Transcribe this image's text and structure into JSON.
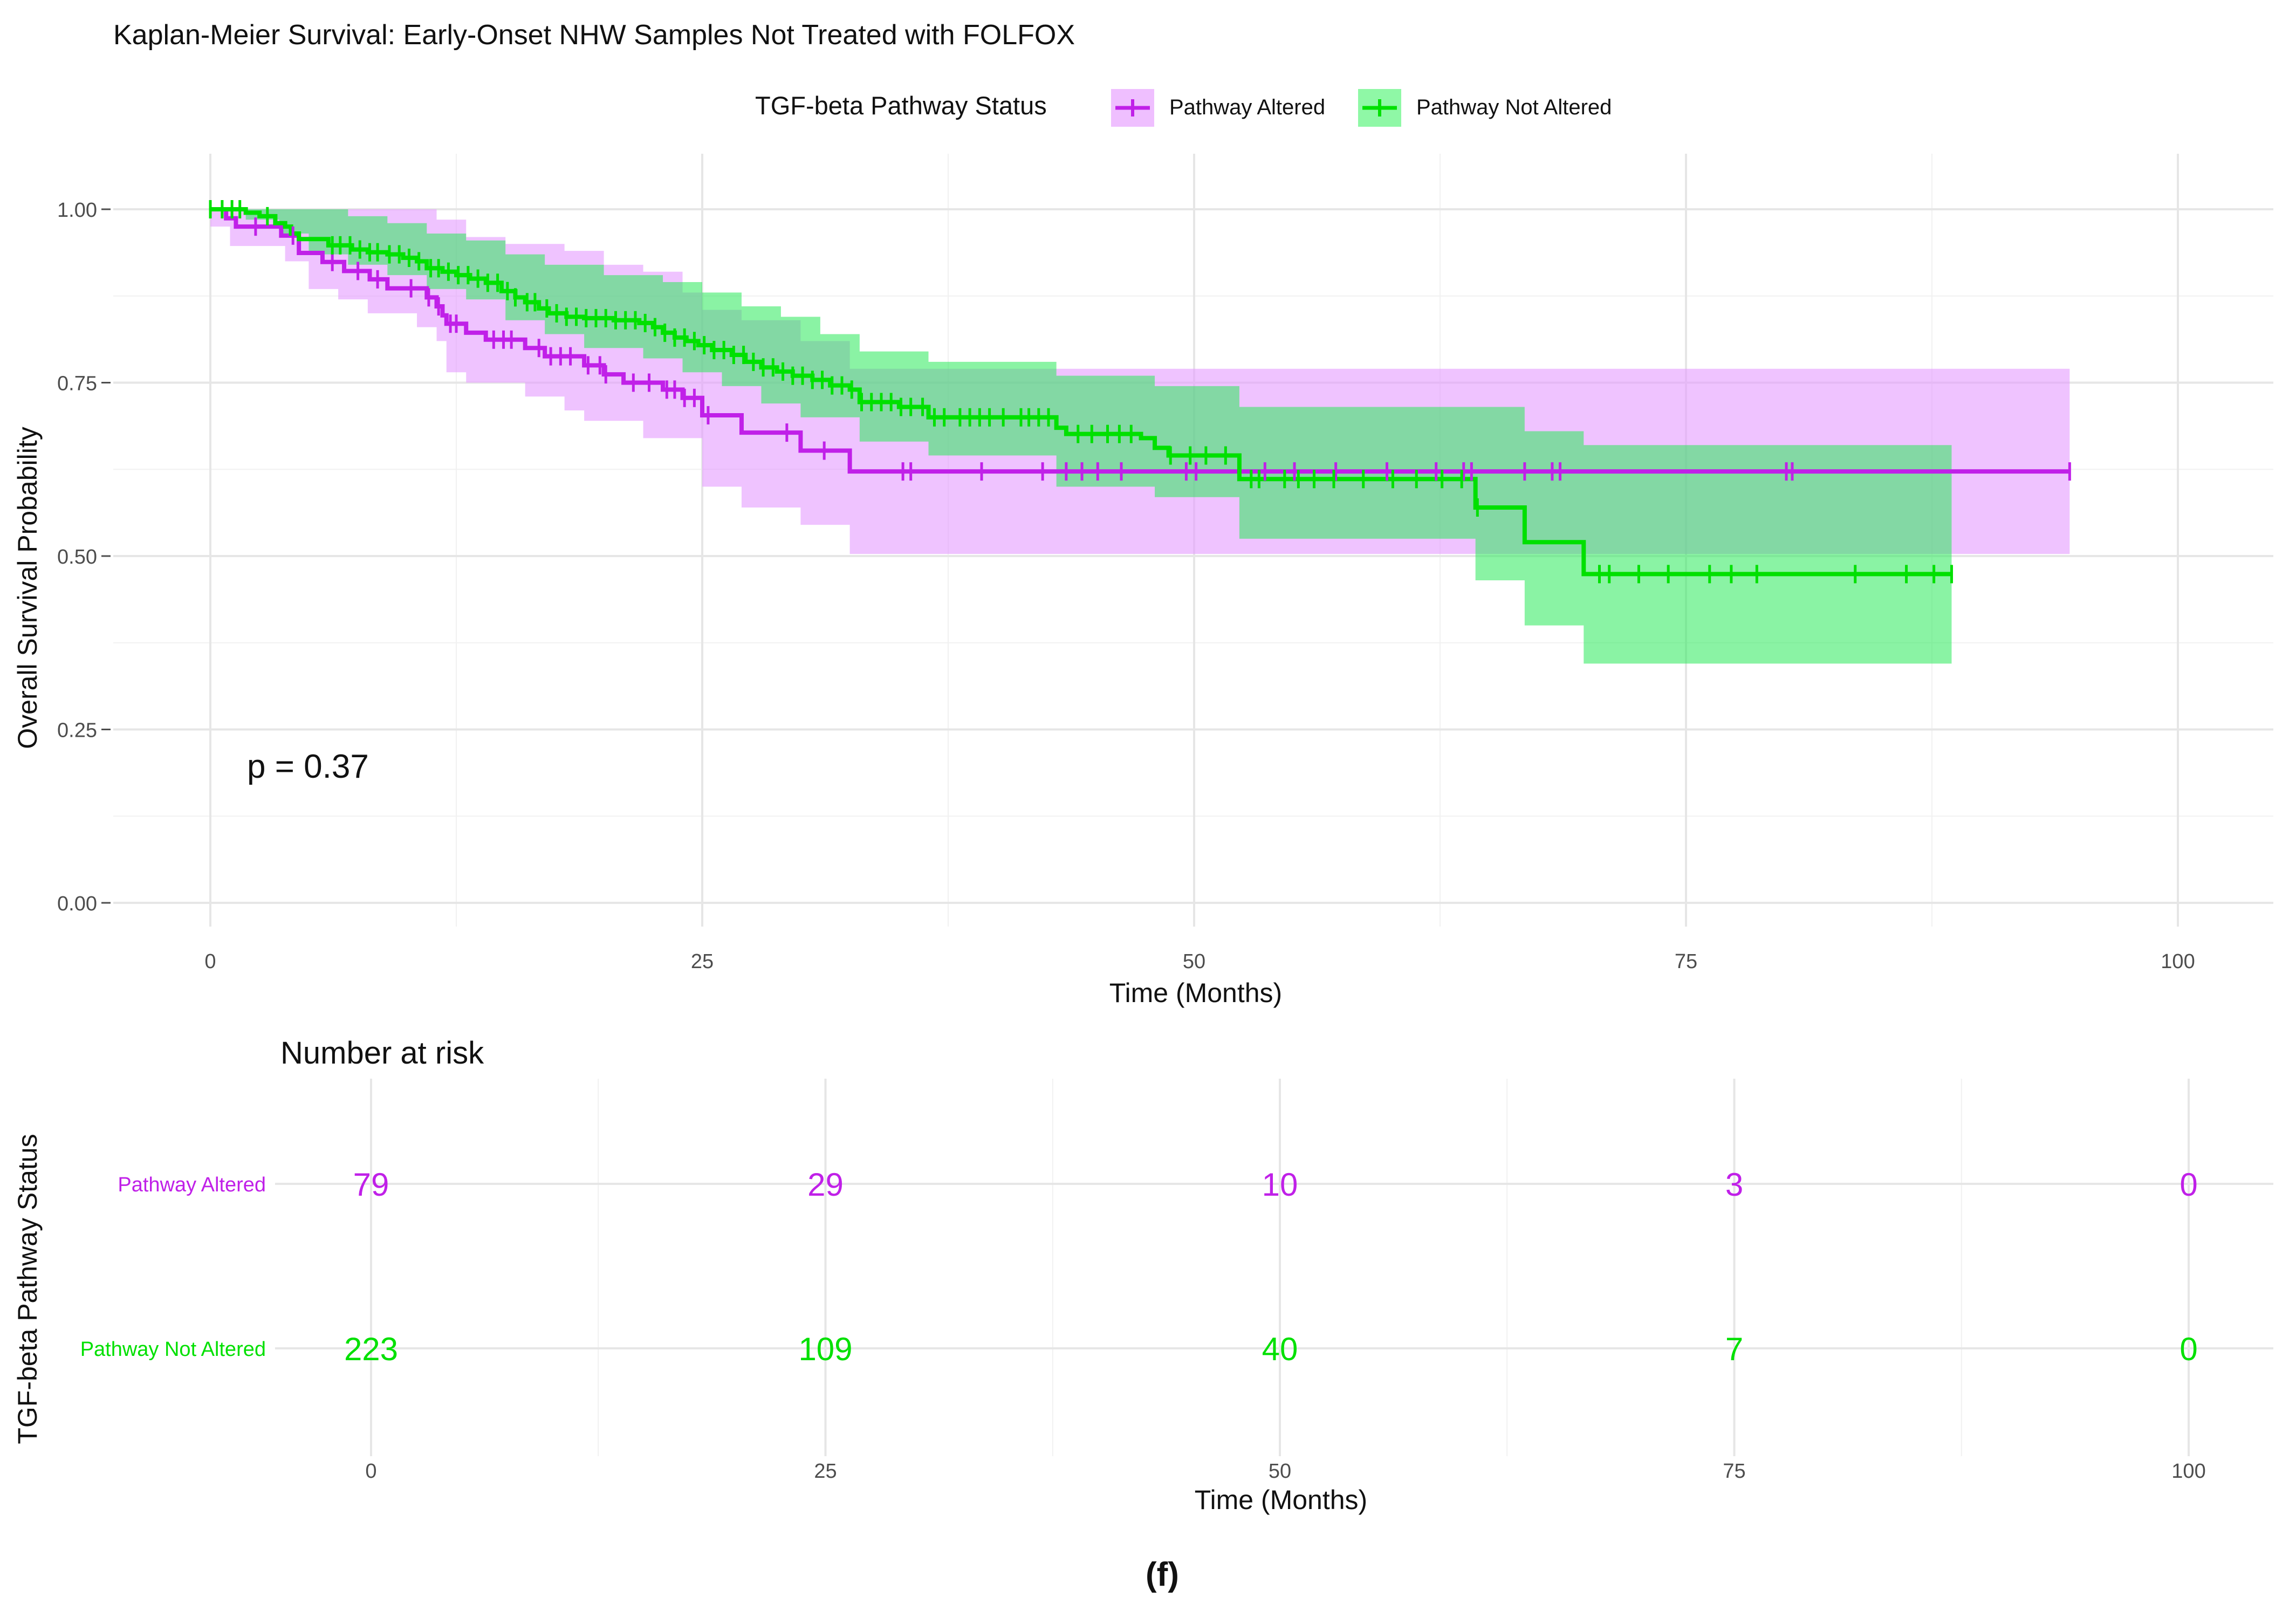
{
  "chart_data": [
    {
      "type": "line",
      "subtype": "kaplan-meier",
      "title": "Kaplan-Meier Survival: Early-Onset NHW Samples Not Treated with FOLFOX",
      "xlabel": "Time (Months)",
      "ylabel": "Overall Survival Probability",
      "xlim": [
        -5,
        105
      ],
      "ylim": [
        -0.02,
        1.06
      ],
      "x_ticks": [
        0,
        25,
        50,
        75,
        100
      ],
      "x_tick_labels": [
        "0",
        "25",
        "50",
        "75",
        "100"
      ],
      "y_ticks": [
        0,
        0.25,
        0.5,
        0.75,
        1.0
      ],
      "y_tick_labels": [
        "0.00",
        "0.25",
        "0.50",
        "0.75",
        "1.00"
      ],
      "grid": true,
      "legend": {
        "title": "TGF-beta Pathway Status",
        "position": "top",
        "entries": [
          "Pathway Altered",
          "Pathway Not Altered"
        ]
      },
      "annotation": "p = 0.37",
      "series": [
        {
          "name": "Pathway Altered",
          "color": "#c020e8",
          "band_color": "#ef bfff",
          "steps": [
            [
              0,
              1.0
            ],
            [
              0.8,
              0.987
            ],
            [
              1.3,
              0.975
            ],
            [
              3.6,
              0.962
            ],
            [
              4.5,
              0.937
            ],
            [
              5.7,
              0.924
            ],
            [
              6.8,
              0.911
            ],
            [
              8.1,
              0.899
            ],
            [
              9,
              0.886
            ],
            [
              10.5,
              0.886
            ],
            [
              11,
              0.873
            ],
            [
              11.5,
              0.86
            ],
            [
              11.8,
              0.847
            ],
            [
              12,
              0.835
            ],
            [
              13,
              0.822
            ],
            [
              14,
              0.812
            ],
            [
              15,
              0.812
            ],
            [
              16,
              0.8
            ],
            [
              17,
              0.788
            ],
            [
              18,
              0.788
            ],
            [
              19,
              0.775
            ],
            [
              20,
              0.762
            ],
            [
              21,
              0.75
            ],
            [
              22,
              0.75
            ],
            [
              23,
              0.74
            ],
            [
              24,
              0.728
            ],
            [
              25,
              0.703
            ],
            [
              27,
              0.678
            ],
            [
              29.5,
              0.678
            ],
            [
              30,
              0.652
            ],
            [
              32.5,
              0.622
            ],
            [
              94.5,
              0.622
            ]
          ],
          "lower_steps": [
            [
              0,
              0.975
            ],
            [
              1,
              0.947
            ],
            [
              3.8,
              0.925
            ],
            [
              5,
              0.885
            ],
            [
              6.5,
              0.87
            ],
            [
              8,
              0.85
            ],
            [
              10.5,
              0.83
            ],
            [
              11.5,
              0.81
            ],
            [
              12,
              0.765
            ],
            [
              13,
              0.75
            ],
            [
              16,
              0.73
            ],
            [
              18,
              0.71
            ],
            [
              19,
              0.695
            ],
            [
              22,
              0.67
            ],
            [
              25,
              0.6
            ],
            [
              27,
              0.57
            ],
            [
              30,
              0.545
            ],
            [
              32.5,
              0.503
            ],
            [
              94.5,
              0.503
            ]
          ],
          "upper_steps": [
            [
              0,
              1.0
            ],
            [
              10,
              1.0
            ],
            [
              11.5,
              0.985
            ],
            [
              13,
              0.96
            ],
            [
              15,
              0.95
            ],
            [
              18,
              0.94
            ],
            [
              20,
              0.92
            ],
            [
              22,
              0.91
            ],
            [
              24,
              0.88
            ],
            [
              25,
              0.855
            ],
            [
              27,
              0.84
            ],
            [
              30,
              0.81
            ],
            [
              32.5,
              0.77
            ],
            [
              94.5,
              0.77
            ]
          ],
          "censor_times": [
            2.3,
            4.2,
            6.2,
            7.5,
            8.5,
            10.2,
            11.1,
            11.6,
            12.2,
            12.5,
            14.4,
            14.9,
            15.3,
            16.7,
            17.3,
            17.8,
            18.3,
            19.2,
            19.8,
            20.1,
            21.5,
            22.3,
            23.2,
            23.6,
            24.1,
            24.6,
            25.3,
            29.3,
            31.2,
            35.2,
            35.6,
            39.2,
            42.3,
            43.5,
            44.3,
            45.1,
            46.3,
            49.6,
            50.1,
            53.6,
            55.1,
            57.2,
            59.8,
            62.3,
            63.7,
            64.1,
            66.8,
            68.2,
            68.6,
            80.1,
            80.4,
            94.5
          ]
        },
        {
          "name": "Pathway Not Altered",
          "color": "#00e000",
          "band_color": "#8ff8a6",
          "steps": [
            [
              0,
              1.0
            ],
            [
              1.8,
              0.995
            ],
            [
              2.5,
              0.99
            ],
            [
              3.3,
              0.98
            ],
            [
              3.8,
              0.975
            ],
            [
              4.1,
              0.965
            ],
            [
              4.5,
              0.957
            ],
            [
              6,
              0.948
            ],
            [
              7.2,
              0.942
            ],
            [
              8,
              0.938
            ],
            [
              9,
              0.935
            ],
            [
              9.8,
              0.93
            ],
            [
              10.5,
              0.925
            ],
            [
              11,
              0.915
            ],
            [
              11.8,
              0.91
            ],
            [
              12.5,
              0.905
            ],
            [
              13.2,
              0.9
            ],
            [
              14,
              0.894
            ],
            [
              14.8,
              0.882
            ],
            [
              15.5,
              0.873
            ],
            [
              16,
              0.866
            ],
            [
              16.7,
              0.857
            ],
            [
              17.2,
              0.85
            ],
            [
              18.1,
              0.845
            ],
            [
              19,
              0.843
            ],
            [
              20.5,
              0.84
            ],
            [
              21.8,
              0.836
            ],
            [
              22.5,
              0.83
            ],
            [
              23,
              0.822
            ],
            [
              23.6,
              0.815
            ],
            [
              24.2,
              0.81
            ],
            [
              24.8,
              0.804
            ],
            [
              25.5,
              0.797
            ],
            [
              26.5,
              0.79
            ],
            [
              27.2,
              0.78
            ],
            [
              28,
              0.772
            ],
            [
              28.8,
              0.766
            ],
            [
              29.6,
              0.76
            ],
            [
              30.6,
              0.754
            ],
            [
              31.5,
              0.746
            ],
            [
              32.5,
              0.74
            ],
            [
              33,
              0.722
            ],
            [
              35,
              0.715
            ],
            [
              36.5,
              0.7
            ],
            [
              42.7,
              0.7
            ],
            [
              43,
              0.685
            ],
            [
              43.5,
              0.676
            ],
            [
              47.3,
              0.67
            ],
            [
              48,
              0.656
            ],
            [
              48.7,
              0.645
            ],
            [
              50.5,
              0.645
            ],
            [
              52.3,
              0.611
            ],
            [
              64.1,
              0.611
            ],
            [
              64.3,
              0.57
            ],
            [
              66.8,
              0.52
            ],
            [
              69.8,
              0.474
            ],
            [
              88.5,
              0.474
            ]
          ],
          "lower_steps": [
            [
              0,
              1.0
            ],
            [
              1.8,
              0.985
            ],
            [
              3.5,
              0.965
            ],
            [
              5,
              0.935
            ],
            [
              7,
              0.92
            ],
            [
              9,
              0.905
            ],
            [
              11,
              0.885
            ],
            [
              13,
              0.87
            ],
            [
              15,
              0.84
            ],
            [
              17,
              0.82
            ],
            [
              19,
              0.8
            ],
            [
              22,
              0.785
            ],
            [
              24,
              0.765
            ],
            [
              26,
              0.745
            ],
            [
              28,
              0.72
            ],
            [
              30,
              0.7
            ],
            [
              33,
              0.665
            ],
            [
              36.5,
              0.645
            ],
            [
              43,
              0.6
            ],
            [
              48,
              0.585
            ],
            [
              52.3,
              0.525
            ],
            [
              64.1,
              0.525
            ],
            [
              64.3,
              0.465
            ],
            [
              66.8,
              0.4
            ],
            [
              69.8,
              0.345
            ],
            [
              88.5,
              0.345
            ]
          ],
          "upper_steps": [
            [
              0,
              1.0
            ],
            [
              5,
              1.0
            ],
            [
              7,
              0.99
            ],
            [
              9,
              0.98
            ],
            [
              11,
              0.965
            ],
            [
              13,
              0.955
            ],
            [
              15,
              0.935
            ],
            [
              17,
              0.92
            ],
            [
              20,
              0.905
            ],
            [
              23,
              0.895
            ],
            [
              25,
              0.88
            ],
            [
              27,
              0.86
            ],
            [
              29,
              0.845
            ],
            [
              31,
              0.82
            ],
            [
              33,
              0.795
            ],
            [
              36.5,
              0.78
            ],
            [
              43,
              0.76
            ],
            [
              48,
              0.745
            ],
            [
              52.3,
              0.715
            ],
            [
              64.3,
              0.715
            ],
            [
              66.8,
              0.68
            ],
            [
              69.8,
              0.66
            ],
            [
              88.5,
              0.66
            ]
          ],
          "censor_times": [
            0,
            0.6,
            1.1,
            1.5,
            2.9,
            6.2,
            6.6,
            7.1,
            7.6,
            8.1,
            8.5,
            9.1,
            9.6,
            10.1,
            10.6,
            11.2,
            11.6,
            12.1,
            12.6,
            13.1,
            13.6,
            14.1,
            14.6,
            15.1,
            15.5,
            16.1,
            16.5,
            17.1,
            17.6,
            18.1,
            18.6,
            19.1,
            19.6,
            20.1,
            20.6,
            21.1,
            21.6,
            22.1,
            22.6,
            23.1,
            23.6,
            24.1,
            24.6,
            25.1,
            25.6,
            26.1,
            26.6,
            27.1,
            27.6,
            28.1,
            28.6,
            29.1,
            29.6,
            30.1,
            30.6,
            31.1,
            31.6,
            32.1,
            32.6,
            33.1,
            33.6,
            34.1,
            34.6,
            35.1,
            35.6,
            36.2,
            36.8,
            37.3,
            38.1,
            38.6,
            39.1,
            39.6,
            40.3,
            41.2,
            41.6,
            42.1,
            42.6,
            44.1,
            44.8,
            45.6,
            46.2,
            46.8,
            48.8,
            49.8,
            50.6,
            51.6,
            52.9,
            53.3,
            54.6,
            55.3,
            56.1,
            57.1,
            58.6,
            60.1,
            61.3,
            62.6,
            63.6,
            64.4,
            70.6,
            71.1,
            72.6,
            74.1,
            76.2,
            77.3,
            78.6,
            83.6,
            86.2,
            87.6,
            88.5
          ]
        }
      ]
    },
    {
      "type": "table",
      "title": "Number at risk",
      "xlabel": "Time (Months)",
      "ylabel": "TGF-beta Pathway Status",
      "x_ticks": [
        0,
        25,
        50,
        75,
        100
      ],
      "x_tick_labels": [
        "0",
        "25",
        "50",
        "75",
        "100"
      ],
      "rows": [
        {
          "name": "Pathway Altered",
          "color": "#c020e8",
          "values": [
            "79",
            "29",
            "10",
            "3",
            "0"
          ]
        },
        {
          "name": "Pathway Not Altered",
          "color": "#00e000",
          "values": [
            "223",
            "109",
            "40",
            "7",
            "0"
          ]
        }
      ]
    }
  ],
  "caption": "(f)"
}
